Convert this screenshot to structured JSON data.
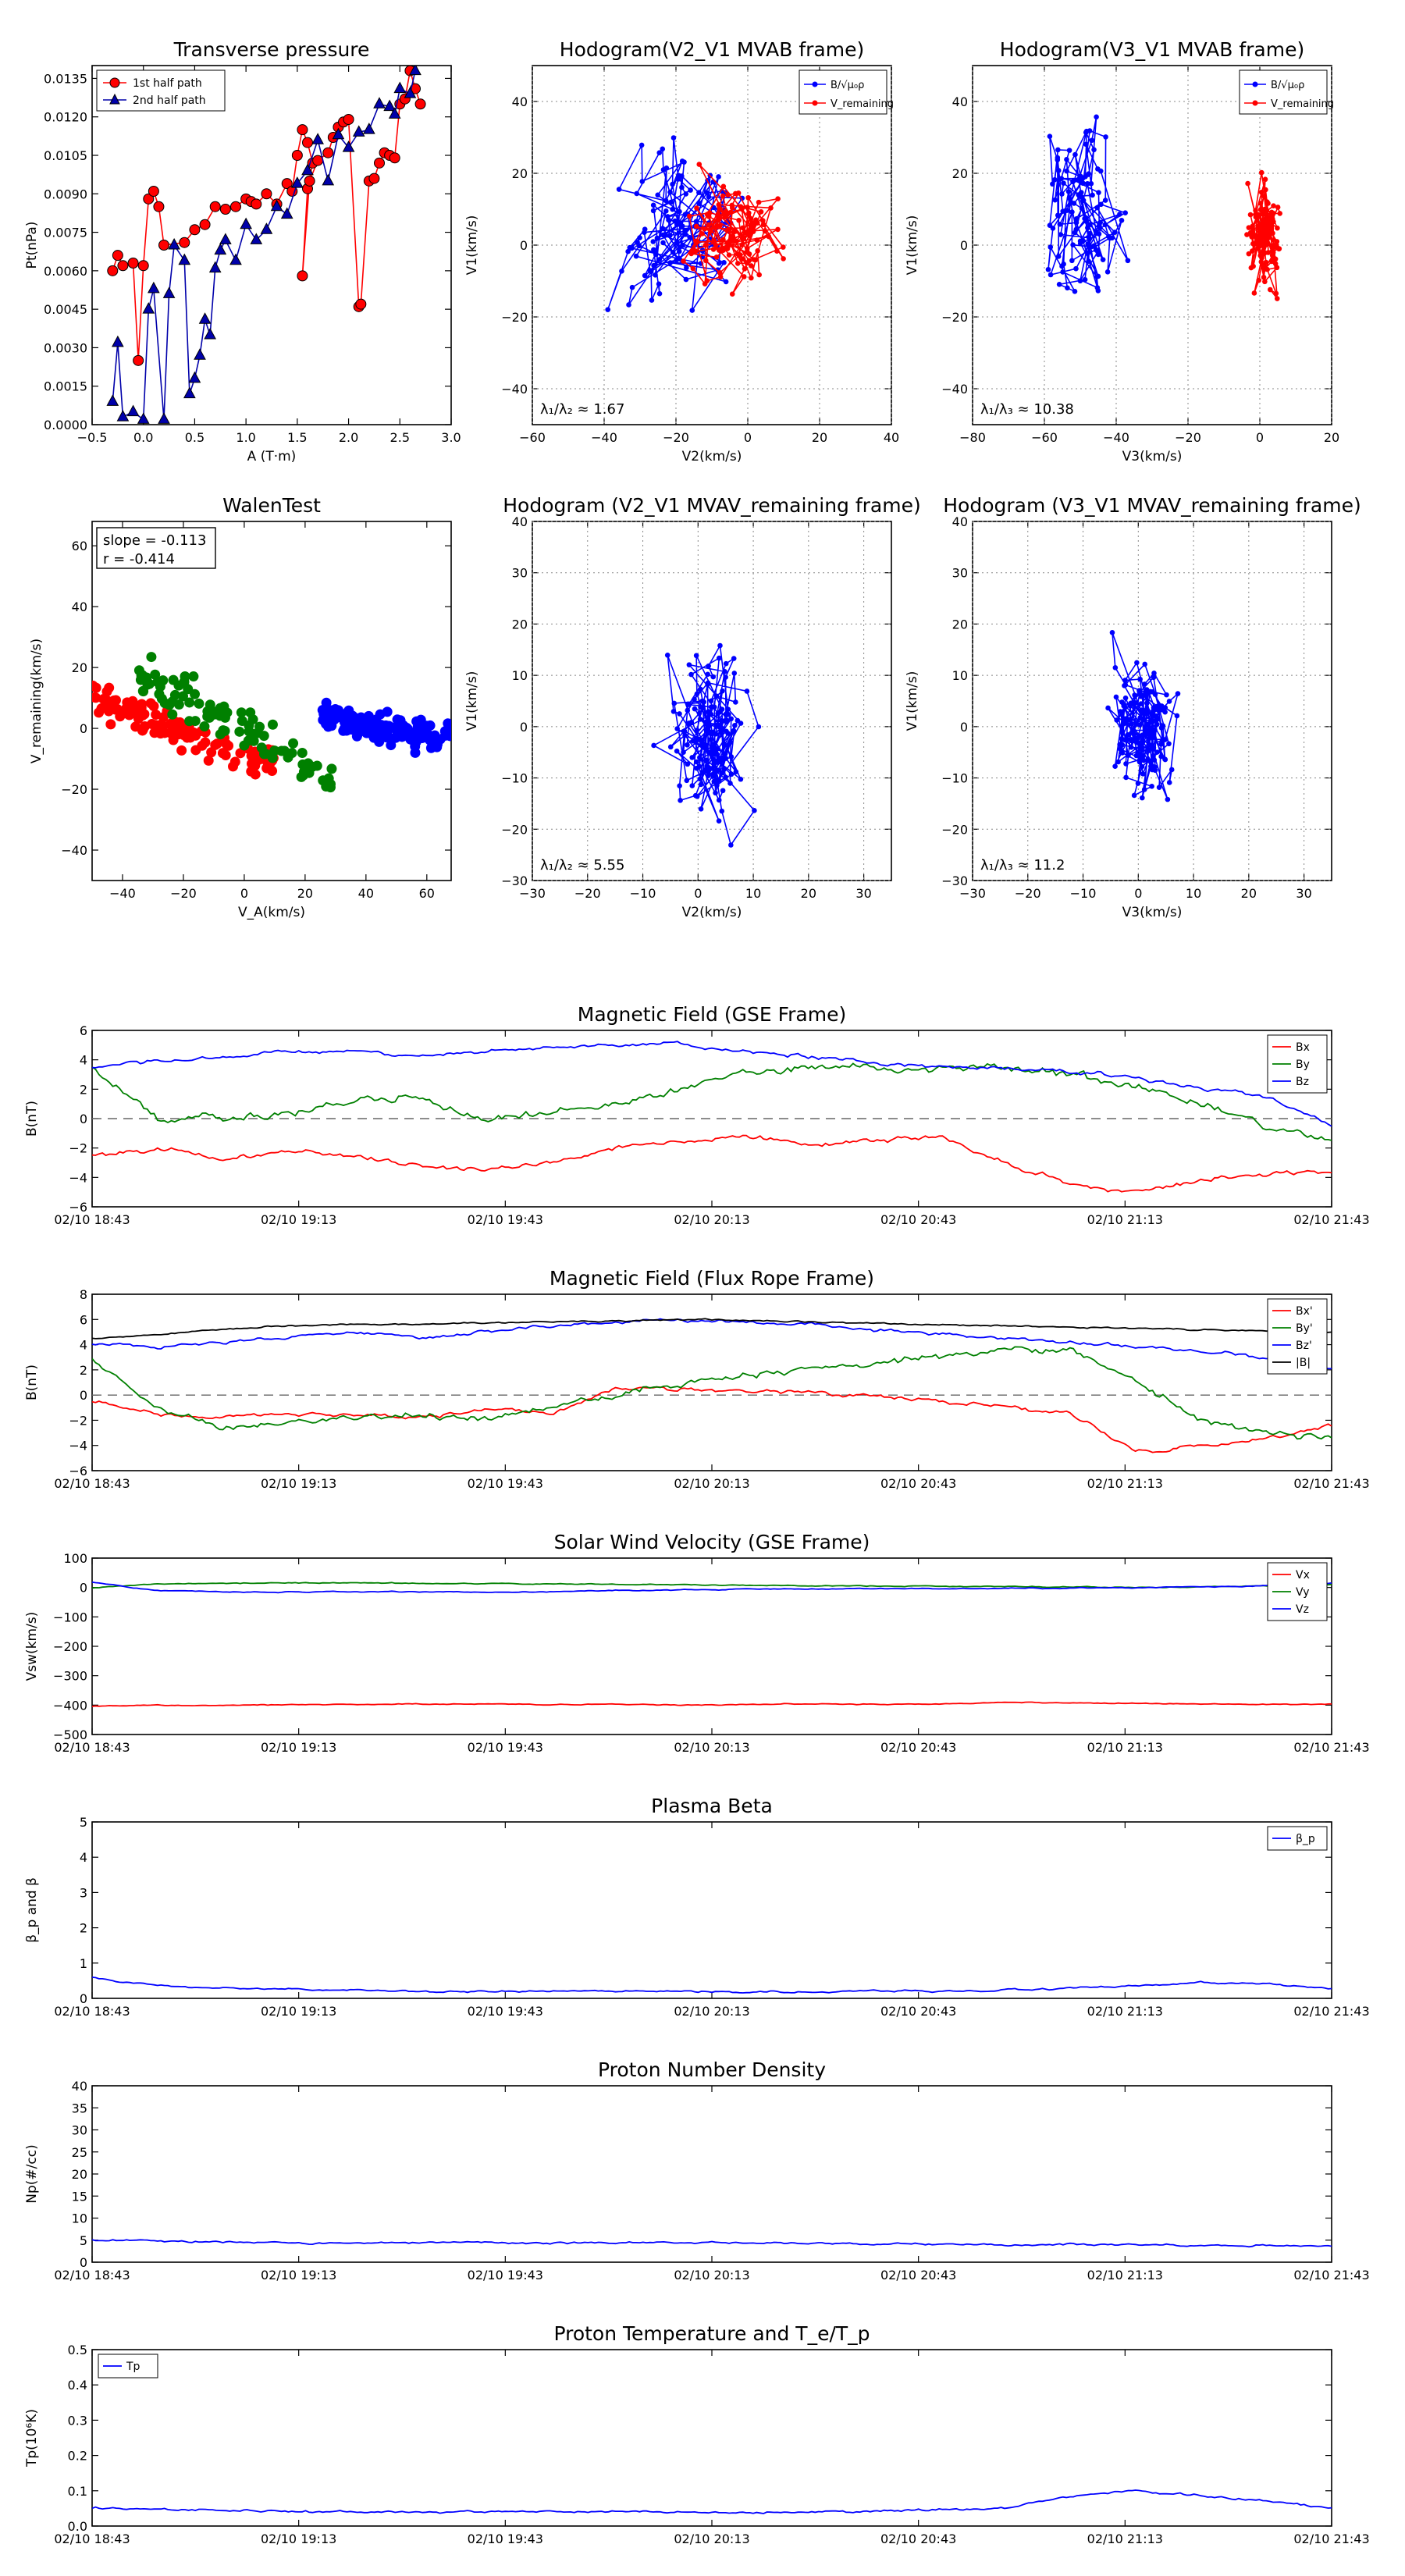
{
  "time_ticks": [
    "02/10 18:43",
    "02/10 19:13",
    "02/10 19:43",
    "02/10 20:13",
    "02/10 20:43",
    "02/10 21:13",
    "02/10 21:43"
  ],
  "chart_data": [
    {
      "id": "tp",
      "type": "line",
      "title": "Transverse pressure",
      "xlabel": "A (T·m)",
      "ylabel": "Pt(nPa)",
      "xlim": [
        -0.5,
        3.0
      ],
      "ylim": [
        0,
        0.014
      ],
      "xticks": [
        -0.5,
        0.0,
        0.5,
        1.0,
        1.5,
        2.0,
        2.5,
        3.0
      ],
      "yticks": [
        0.0,
        0.0015,
        0.003,
        0.0045,
        0.006,
        0.0075,
        0.009,
        0.0105,
        0.012,
        0.0135
      ],
      "xtick_labels": [
        "−0.5",
        "0.0",
        "0.5",
        "1.0",
        "1.5",
        "2.0",
        "2.5",
        "3.0"
      ],
      "ytick_labels": [
        "0.0000",
        "0.0015",
        "0.0030",
        "0.0045",
        "0.0060",
        "0.0075",
        "0.0090",
        "0.0105",
        "0.0120",
        "0.0135"
      ],
      "legend": "top-left",
      "grid": false,
      "series": [
        {
          "name": "1st half path",
          "color": "#ff0000",
          "marker": "circle",
          "x": [
            -0.3,
            -0.25,
            -0.2,
            -0.1,
            -0.05,
            0.0,
            0.05,
            0.1,
            0.15,
            0.2,
            0.4,
            0.5,
            0.6,
            0.7,
            0.8,
            0.9,
            1.0,
            1.05,
            1.1,
            1.2,
            1.3,
            1.4,
            1.45,
            1.5,
            1.55,
            1.6,
            1.65,
            1.6,
            1.55,
            1.62,
            1.7,
            1.8,
            1.85,
            1.9,
            1.95,
            2.0,
            2.1,
            2.12,
            2.2,
            2.25,
            2.3,
            2.35,
            2.4,
            2.45,
            2.5,
            2.55,
            2.6,
            2.65,
            2.7
          ],
          "y": [
            0.006,
            0.0066,
            0.0062,
            0.0063,
            0.0025,
            0.0062,
            0.0088,
            0.0091,
            0.0085,
            0.007,
            0.0071,
            0.0076,
            0.0078,
            0.0085,
            0.0084,
            0.0085,
            0.0088,
            0.0087,
            0.0086,
            0.009,
            0.0086,
            0.0094,
            0.0091,
            0.0105,
            0.0115,
            0.011,
            0.0102,
            0.0092,
            0.0058,
            0.0095,
            0.0103,
            0.0106,
            0.0112,
            0.0116,
            0.0118,
            0.0119,
            0.0046,
            0.0047,
            0.0095,
            0.0096,
            0.0102,
            0.0106,
            0.0105,
            0.0104,
            0.0125,
            0.0127,
            0.0138,
            0.0131,
            0.0125
          ]
        },
        {
          "name": "2nd half path",
          "color": "#0000aa",
          "marker": "triangle",
          "x": [
            -0.3,
            -0.25,
            -0.2,
            -0.1,
            0.0,
            0.05,
            0.1,
            0.2,
            0.25,
            0.3,
            0.4,
            0.45,
            0.5,
            0.55,
            0.6,
            0.65,
            0.7,
            0.75,
            0.8,
            0.9,
            1.0,
            1.1,
            1.2,
            1.3,
            1.4,
            1.5,
            1.6,
            1.7,
            1.8,
            1.9,
            2.0,
            2.1,
            2.2,
            2.3,
            2.4,
            2.45,
            2.5,
            2.6,
            2.65
          ],
          "y": [
            0.0009,
            0.0032,
            0.0003,
            0.0005,
            0.0002,
            0.0045,
            0.0053,
            0.0002,
            0.0051,
            0.007,
            0.0064,
            0.0012,
            0.0018,
            0.0027,
            0.0041,
            0.0035,
            0.0061,
            0.0068,
            0.0072,
            0.0064,
            0.0078,
            0.0072,
            0.0076,
            0.0085,
            0.0082,
            0.0094,
            0.0099,
            0.0111,
            0.0095,
            0.0113,
            0.0108,
            0.0114,
            0.0115,
            0.0125,
            0.0124,
            0.0121,
            0.0131,
            0.0129,
            0.0138
          ]
        }
      ]
    },
    {
      "id": "h1",
      "type": "line",
      "title": "Hodogram(V2_V1 MVAB frame)",
      "xlabel": "V2(km/s)",
      "ylabel": "V1(km/s)",
      "xlim": [
        -60,
        40
      ],
      "ylim": [
        -50,
        50
      ],
      "xticks": [
        -60,
        -40,
        -20,
        0,
        20,
        40
      ],
      "yticks": [
        -40,
        -20,
        0,
        20,
        40
      ],
      "xtick_labels": [
        "−60",
        "−40",
        "−20",
        "0",
        "20",
        "40"
      ],
      "ytick_labels": [
        "−40",
        "−20",
        "0",
        "20",
        "40"
      ],
      "grid": true,
      "legend": "top-right",
      "annotation": "λ₁/λ₂ ≈ 1.67",
      "series": [
        {
          "name": "B/√μ₀ρ",
          "color": "#0000ff",
          "cx": -20,
          "cy": 2,
          "sx": 14,
          "sy": 18,
          "n": 120,
          "seed": 11
        },
        {
          "name": "V_remaining",
          "color": "#ff0000",
          "cx": -3,
          "cy": 3,
          "sx": 10,
          "sy": 12,
          "n": 120,
          "seed": 23
        }
      ]
    },
    {
      "id": "h2",
      "type": "line",
      "title": "Hodogram(V3_V1 MVAB frame)",
      "xlabel": "V3(km/s)",
      "ylabel": "V1(km/s)",
      "xlim": [
        -80,
        20
      ],
      "ylim": [
        -50,
        50
      ],
      "xticks": [
        -80,
        -60,
        -40,
        -20,
        0,
        20
      ],
      "yticks": [
        -40,
        -20,
        0,
        20,
        40
      ],
      "xtick_labels": [
        "−80",
        "−60",
        "−40",
        "−20",
        "0",
        "20"
      ],
      "ytick_labels": [
        "−40",
        "−20",
        "0",
        "20",
        "40"
      ],
      "grid": true,
      "legend": "top-right",
      "annotation": "λ₁/λ₃ ≈ 10.38",
      "series": [
        {
          "name": "B/√μ₀ρ",
          "color": "#0000ff",
          "cx": -50,
          "cy": 8,
          "sx": 8,
          "sy": 18,
          "n": 120,
          "seed": 37
        },
        {
          "name": "V_remaining",
          "color": "#ff0000",
          "cx": 1,
          "cy": 3,
          "sx": 4,
          "sy": 12,
          "n": 120,
          "seed": 41
        }
      ]
    },
    {
      "id": "walen",
      "type": "scatter",
      "title": "WalenTest",
      "xlabel": "V_A(km/s)",
      "ylabel": "V_remaining(km/s)",
      "xlim": [
        -50,
        68
      ],
      "ylim": [
        -50,
        68
      ],
      "xticks": [
        -40,
        -20,
        0,
        20,
        40,
        60
      ],
      "yticks": [
        -40,
        -20,
        0,
        20,
        40,
        60
      ],
      "xtick_labels": [
        "−40",
        "−20",
        "0",
        "20",
        "40",
        "60"
      ],
      "ytick_labels": [
        "−40",
        "−20",
        "0",
        "20",
        "40",
        "60"
      ],
      "grid": false,
      "annotation": [
        "slope = -0.113",
        "r = -0.414"
      ],
      "series": [
        {
          "color": "#ff0000",
          "x0": -50,
          "x1": 10,
          "ya": 10,
          "yb": -12,
          "noise": 5,
          "n": 110,
          "seed": 5
        },
        {
          "color": "#008000",
          "x0": -35,
          "x1": 30,
          "ya": 18,
          "yb": -18,
          "noise": 7,
          "n": 90,
          "seed": 7
        },
        {
          "color": "#0000ff",
          "x0": 25,
          "x1": 68,
          "ya": 3,
          "yb": -3,
          "noise": 4,
          "n": 140,
          "seed": 9
        }
      ]
    },
    {
      "id": "h3",
      "type": "line",
      "title": "Hodogram (V2_V1 MVAV_remaining frame)",
      "xlabel": "V2(km/s)",
      "ylabel": "V1(km/s)",
      "xlim": [
        -30,
        35
      ],
      "ylim": [
        -30,
        40
      ],
      "xticks": [
        -30,
        -20,
        -10,
        0,
        10,
        20,
        30
      ],
      "yticks": [
        -30,
        -20,
        -10,
        0,
        10,
        20,
        30,
        40
      ],
      "xtick_labels": [
        "−30",
        "−20",
        "−10",
        "0",
        "10",
        "20",
        "30"
      ],
      "ytick_labels": [
        "−30",
        "−20",
        "−10",
        "0",
        "10",
        "20",
        "30",
        "40"
      ],
      "grid": true,
      "annotation": "λ₁/λ₂ ≈ 5.55",
      "series": [
        {
          "color": "#0000ff",
          "cx": 1,
          "cy": 0,
          "sx": 6,
          "sy": 12,
          "n": 150,
          "seed": 13
        }
      ]
    },
    {
      "id": "h4",
      "type": "line",
      "title": "Hodogram (V3_V1 MVAV_remaining frame)",
      "xlabel": "V3(km/s)",
      "ylabel": "V1(km/s)",
      "xlim": [
        -30,
        35
      ],
      "ylim": [
        -30,
        40
      ],
      "xticks": [
        -30,
        -20,
        -10,
        0,
        10,
        20,
        30
      ],
      "yticks": [
        -30,
        -20,
        -10,
        0,
        10,
        20,
        30,
        40
      ],
      "xtick_labels": [
        "−30",
        "−20",
        "−10",
        "0",
        "10",
        "20",
        "30"
      ],
      "ytick_labels": [
        "−30",
        "−20",
        "−10",
        "0",
        "10",
        "20",
        "30",
        "40"
      ],
      "grid": true,
      "annotation": "λ₁/λ₃ ≈ 11.2",
      "series": [
        {
          "color": "#0000ff",
          "cx": 1,
          "cy": 0,
          "sx": 4,
          "sy": 11,
          "n": 150,
          "seed": 17
        }
      ]
    },
    {
      "id": "bgse",
      "type": "line",
      "title": "Magnetic Field (GSE Frame)",
      "ylabel": "B(nT)",
      "ylim": [
        -6,
        6
      ],
      "yticks": [
        -6,
        -4,
        -2,
        0,
        2,
        4,
        6
      ],
      "ytick_labels": [
        "−6",
        "−4",
        "−2",
        "0",
        "2",
        "4",
        "6"
      ],
      "zero_line": true,
      "legend": "top-right",
      "series": [
        {
          "name": "Bx",
          "color": "#ff0000",
          "knots": [
            -2.5,
            -2,
            -2.8,
            -2.2,
            -2.5,
            -3.2,
            -3.5,
            -3,
            -2,
            -1.5,
            -1.2,
            -1.8,
            -1.5,
            -1.2,
            -3,
            -4.5,
            -5,
            -4.2,
            -3.8,
            -3.5
          ],
          "noise": 0.3,
          "seed": 101
        },
        {
          "name": "By",
          "color": "#008000",
          "knots": [
            3.5,
            0,
            0,
            0.5,
            1.2,
            1.5,
            0,
            0.5,
            1,
            2,
            3,
            3.5,
            3.5,
            3.2,
            3.5,
            3,
            2,
            1,
            -0.5,
            -1.5
          ],
          "noise": 0.5,
          "seed": 102
        },
        {
          "name": "Bz",
          "color": "#0000ff",
          "knots": [
            3.5,
            3.8,
            4.2,
            4.5,
            4.6,
            4.3,
            4.5,
            4.8,
            5,
            5.1,
            4.5,
            4.2,
            3.8,
            3.5,
            3.4,
            3.2,
            2.8,
            2,
            1.5,
            -0.5
          ],
          "noise": 0.25,
          "seed": 103
        }
      ]
    },
    {
      "id": "bfr",
      "type": "line",
      "title": "Magnetic Field (Flux Rope Frame)",
      "ylabel": "B(nT)",
      "ylim": [
        -6,
        8
      ],
      "yticks": [
        -6,
        -4,
        -2,
        0,
        2,
        4,
        6,
        8
      ],
      "ytick_labels": [
        "−6",
        "−4",
        "−2",
        "0",
        "2",
        "4",
        "6",
        "8"
      ],
      "zero_line": true,
      "legend": "top-right",
      "series": [
        {
          "name": "Bx'",
          "color": "#ff0000",
          "knots": [
            -0.5,
            -1.5,
            -1.8,
            -1.5,
            -1.5,
            -1.8,
            -1.2,
            -1.5,
            0.5,
            0.5,
            0.3,
            0.2,
            0,
            -0.5,
            -1,
            -1.5,
            -4.5,
            -4,
            -3.5,
            -2.5
          ],
          "noise": 0.3,
          "seed": 201
        },
        {
          "name": "By'",
          "color": "#008000",
          "knots": [
            3,
            -1,
            -2.5,
            -2,
            -1.8,
            -1.5,
            -2,
            -1,
            0,
            1,
            1.5,
            2,
            2.5,
            3,
            3.5,
            3.5,
            1,
            -2,
            -3,
            -3.5
          ],
          "noise": 0.5,
          "seed": 202
        },
        {
          "name": "Bz'",
          "color": "#0000ff",
          "knots": [
            4,
            3.8,
            4.2,
            4.6,
            5,
            4.5,
            5,
            5.5,
            5.8,
            6,
            5.8,
            5.6,
            5.2,
            4.8,
            4.5,
            4.2,
            3.8,
            3.5,
            3,
            2
          ],
          "noise": 0.25,
          "seed": 203
        },
        {
          "name": "|B|",
          "color": "#000000",
          "knots": [
            4.5,
            4.8,
            5.2,
            5.5,
            5.6,
            5.6,
            5.7,
            5.8,
            5.9,
            6,
            5.9,
            5.8,
            5.7,
            5.6,
            5.5,
            5.4,
            5.3,
            5.2,
            5.1,
            5
          ],
          "noise": 0.12,
          "seed": 204
        }
      ]
    },
    {
      "id": "vsw",
      "type": "line",
      "title": "Solar Wind Velocity (GSE Frame)",
      "ylabel": "Vsw(km/s)",
      "ylim": [
        -500,
        100
      ],
      "yticks": [
        -500,
        -400,
        -300,
        -200,
        -100,
        0,
        100
      ],
      "ytick_labels": [
        "−500",
        "−400",
        "−300",
        "−200",
        "−100",
        "0",
        "100"
      ],
      "legend": "top-right",
      "series": [
        {
          "name": "Vx",
          "color": "#ff0000",
          "knots": [
            -405,
            -400,
            -402,
            -398,
            -398,
            -396,
            -396,
            -398,
            -396,
            -400,
            -398,
            -396,
            -398,
            -396,
            -392,
            -392,
            -394,
            -396,
            -398,
            -396
          ],
          "noise": 3,
          "seed": 301
        },
        {
          "name": "Vy",
          "color": "#008000",
          "knots": [
            -2,
            12,
            14,
            15,
            16,
            14,
            14,
            12,
            10,
            10,
            8,
            6,
            5,
            4,
            3,
            2,
            0,
            2,
            5,
            10
          ],
          "noise": 3,
          "seed": 302
        },
        {
          "name": "Vz",
          "color": "#0000ff",
          "knots": [
            18,
            -10,
            -15,
            -16,
            -14,
            -14,
            -16,
            -14,
            -10,
            -8,
            -6,
            -5,
            -4,
            -4,
            -3,
            -2,
            0,
            2,
            5,
            15
          ],
          "noise": 3,
          "seed": 303
        }
      ]
    },
    {
      "id": "beta",
      "type": "line",
      "title": "Plasma Beta",
      "ylabel": "β_p and β",
      "ylim": [
        0,
        5
      ],
      "yticks": [
        0,
        1,
        2,
        3,
        4,
        5
      ],
      "ytick_labels": [
        "0",
        "1",
        "2",
        "3",
        "4",
        "5"
      ],
      "legend": "top-right",
      "series": [
        {
          "name": "β_p",
          "color": "#0000ff",
          "knots": [
            0.6,
            0.35,
            0.3,
            0.25,
            0.22,
            0.2,
            0.2,
            0.2,
            0.2,
            0.2,
            0.18,
            0.18,
            0.2,
            0.2,
            0.22,
            0.3,
            0.35,
            0.45,
            0.4,
            0.3
          ],
          "noise": 0.05,
          "seed": 401
        }
      ]
    },
    {
      "id": "np",
      "type": "line",
      "title": "Proton Number Density",
      "ylabel": "Np(#/cc)",
      "ylim": [
        0,
        40
      ],
      "yticks": [
        0,
        5,
        10,
        15,
        20,
        25,
        30,
        35,
        40
      ],
      "ytick_labels": [
        "0",
        "5",
        "10",
        "15",
        "20",
        "25",
        "30",
        "35",
        "40"
      ],
      "series": [
        {
          "color": "#0000ff",
          "knots": [
            5,
            4.8,
            4.5,
            4.5,
            4.4,
            4.5,
            4.4,
            4.3,
            4.5,
            4.4,
            4.3,
            4.2,
            4.2,
            4.1,
            4,
            4,
            4,
            3.8,
            3.8,
            3.6
          ],
          "noise": 0.4,
          "seed": 501
        }
      ]
    },
    {
      "id": "tpr",
      "type": "line",
      "title": "Proton Temperature and T_e/T_p",
      "ylabel": "Tp(10⁶K)",
      "ylim": [
        0,
        0.5
      ],
      "yticks": [
        0,
        0.1,
        0.2,
        0.3,
        0.4,
        0.5
      ],
      "ytick_labels": [
        "0.0",
        "0.1",
        "0.2",
        "0.3",
        "0.4",
        "0.5"
      ],
      "legend": "top-left",
      "series": [
        {
          "name": "Tp",
          "color": "#0000ff",
          "knots": [
            0.05,
            0.048,
            0.045,
            0.04,
            0.04,
            0.04,
            0.042,
            0.042,
            0.04,
            0.04,
            0.04,
            0.04,
            0.042,
            0.045,
            0.05,
            0.085,
            0.1,
            0.085,
            0.07,
            0.05
          ],
          "noise": 0.006,
          "seed": 601
        }
      ]
    }
  ]
}
